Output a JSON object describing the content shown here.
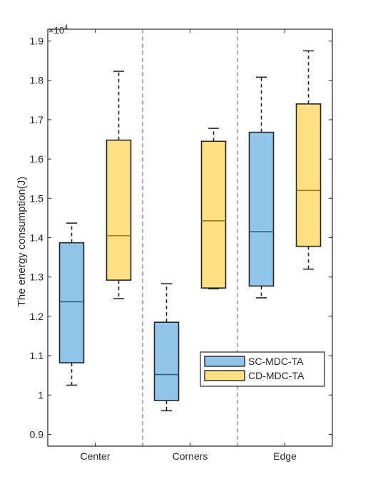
{
  "chart_data": {
    "type": "box",
    "title": "",
    "xlabel": "",
    "ylabel": "The energy consumption(J)",
    "y_multiplier_label": "×10",
    "y_multiplier_exponent": "4",
    "y_scale": 10000,
    "ylim": [
      8700,
      19300
    ],
    "yticks": [
      9000,
      10000,
      11000,
      12000,
      13000,
      14000,
      15000,
      16000,
      17000,
      18000,
      19000
    ],
    "ytick_labels": [
      "0.9",
      "1",
      "1.1",
      "1.2",
      "1.3",
      "1.4",
      "1.5",
      "1.6",
      "1.7",
      "1.8",
      "1.9"
    ],
    "categories": [
      "Center",
      "Corners",
      "Edge"
    ],
    "group_separators": "dashed vertical lines between groups",
    "legend": {
      "placement": "inside lower-right"
    },
    "series": [
      {
        "name": "SC-MDC-TA",
        "color": "#92c5ea",
        "boxes": [
          {
            "category": "Center",
            "min": 10250,
            "q1": 10820,
            "median": 12370,
            "q3": 13870,
            "max": 14370
          },
          {
            "category": "Corners",
            "min": 9600,
            "q1": 9860,
            "median": 10520,
            "q3": 11850,
            "max": 12830
          },
          {
            "category": "Edge",
            "min": 12470,
            "q1": 12770,
            "median": 14150,
            "q3": 16680,
            "max": 18080
          }
        ]
      },
      {
        "name": "CD-MDC-TA",
        "color": "#ffe082",
        "boxes": [
          {
            "category": "Center",
            "min": 12450,
            "q1": 12920,
            "median": 14050,
            "q3": 16480,
            "max": 18230
          },
          {
            "category": "Corners",
            "min": 12700,
            "q1": 12720,
            "median": 14430,
            "q3": 16450,
            "max": 16780
          },
          {
            "category": "Edge",
            "min": 13200,
            "q1": 13780,
            "median": 15200,
            "q3": 17400,
            "max": 18750
          }
        ]
      }
    ]
  }
}
